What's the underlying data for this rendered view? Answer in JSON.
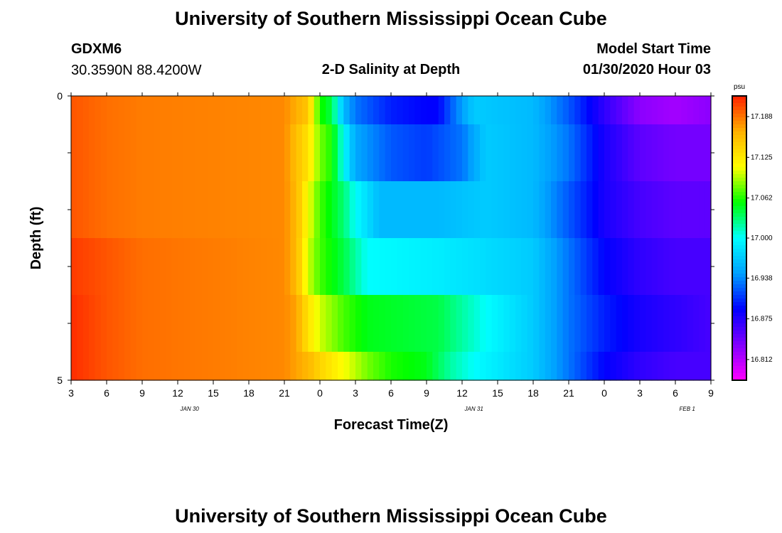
{
  "page": {
    "title": "University of Southern Mississippi Ocean Cube",
    "footer_title": "University of Southern Mississippi Ocean Cube",
    "station": "GDXM6",
    "location": "30.3590N 88.4200W",
    "subtitle": "2-D Salinity at Depth",
    "model_label": "Model Start Time",
    "model_time": "01/30/2020 Hour 03"
  },
  "chart_data": {
    "type": "heatmap",
    "title": "2-D Salinity at Depth",
    "xlabel": "Forecast Time(Z)",
    "ylabel": "Depth (ft)",
    "x_range_hours": [
      3,
      57
    ],
    "x_ticks": [
      "3",
      "6",
      "9",
      "12",
      "15",
      "18",
      "21",
      "0",
      "3",
      "6",
      "9",
      "12",
      "15",
      "18",
      "21",
      "0",
      "3",
      "6",
      "9"
    ],
    "date_labels": [
      {
        "label": "JAN 30",
        "hour": 13
      },
      {
        "label": "JAN 31",
        "hour": 37
      },
      {
        "label": "FEB 1",
        "hour": 55
      }
    ],
    "y_range": [
      0,
      5
    ],
    "y_tick_labels": [
      "0",
      "5"
    ],
    "colorbar": {
      "unit": "psu",
      "min": 16.78,
      "max": 17.22,
      "labels": [
        "17.188",
        "17.125",
        "17.062",
        "17.000",
        "16.938",
        "16.875",
        "16.812"
      ],
      "colors": [
        "#ff00ff",
        "#8000ff",
        "#0000ff",
        "#00a0ff",
        "#00ffff",
        "#00ff00",
        "#ffff00",
        "#ffb000",
        "#ff2000"
      ]
    },
    "depth_layers": [
      {
        "y0": 0.0,
        "y1": 0.5,
        "keyframes": [
          [
            3,
            17.2
          ],
          [
            6,
            17.19
          ],
          [
            9,
            17.185
          ],
          [
            21,
            17.18
          ],
          [
            23,
            17.15
          ],
          [
            24,
            17.06
          ],
          [
            25,
            17.04
          ],
          [
            26,
            16.96
          ],
          [
            27,
            16.93
          ],
          [
            30,
            16.9
          ],
          [
            33,
            16.89
          ],
          [
            34,
            16.89
          ],
          [
            35,
            16.92
          ],
          [
            37,
            16.97
          ],
          [
            42,
            16.96
          ],
          [
            45,
            16.92
          ],
          [
            48,
            16.87
          ],
          [
            51,
            16.83
          ],
          [
            54,
            16.82
          ],
          [
            57,
            16.83
          ]
        ]
      },
      {
        "y0": 0.5,
        "y1": 1.5,
        "keyframes": [
          [
            3,
            17.2
          ],
          [
            6,
            17.19
          ],
          [
            9,
            17.185
          ],
          [
            21,
            17.18
          ],
          [
            23,
            17.13
          ],
          [
            24,
            17.08
          ],
          [
            25,
            17.06
          ],
          [
            26,
            17.0
          ],
          [
            27,
            16.95
          ],
          [
            30,
            16.92
          ],
          [
            33,
            16.91
          ],
          [
            36,
            16.93
          ],
          [
            38,
            16.97
          ],
          [
            42,
            16.96
          ],
          [
            45,
            16.93
          ],
          [
            48,
            16.88
          ],
          [
            51,
            16.85
          ],
          [
            54,
            16.84
          ],
          [
            57,
            16.84
          ]
        ]
      },
      {
        "y0": 1.5,
        "y1": 2.5,
        "keyframes": [
          [
            3,
            17.2
          ],
          [
            6,
            17.19
          ],
          [
            9,
            17.185
          ],
          [
            21,
            17.18
          ],
          [
            22,
            17.16
          ],
          [
            23,
            17.11
          ],
          [
            24,
            17.07
          ],
          [
            26,
            17.03
          ],
          [
            27,
            17.0
          ],
          [
            29,
            16.96
          ],
          [
            34,
            16.96
          ],
          [
            38,
            16.97
          ],
          [
            42,
            16.96
          ],
          [
            45,
            16.92
          ],
          [
            48,
            16.88
          ],
          [
            51,
            16.86
          ],
          [
            54,
            16.85
          ],
          [
            57,
            16.85
          ]
        ]
      },
      {
        "y0": 2.5,
        "y1": 3.5,
        "keyframes": [
          [
            3,
            17.21
          ],
          [
            6,
            17.2
          ],
          [
            9,
            17.19
          ],
          [
            21,
            17.18
          ],
          [
            22,
            17.16
          ],
          [
            23,
            17.1
          ],
          [
            24,
            17.07
          ],
          [
            26,
            17.04
          ],
          [
            28,
            17.0
          ],
          [
            34,
            16.99
          ],
          [
            38,
            16.98
          ],
          [
            42,
            16.97
          ],
          [
            45,
            16.93
          ],
          [
            48,
            16.89
          ],
          [
            51,
            16.87
          ],
          [
            54,
            16.86
          ],
          [
            57,
            16.86
          ]
        ]
      },
      {
        "y0": 3.5,
        "y1": 4.5,
        "keyframes": [
          [
            3,
            17.215
          ],
          [
            6,
            17.2
          ],
          [
            9,
            17.19
          ],
          [
            21,
            17.18
          ],
          [
            22,
            17.17
          ],
          [
            23,
            17.13
          ],
          [
            24,
            17.1
          ],
          [
            26,
            17.07
          ],
          [
            28,
            17.05
          ],
          [
            34,
            17.04
          ],
          [
            36,
            17.02
          ],
          [
            38,
            17.0
          ],
          [
            42,
            16.97
          ],
          [
            45,
            16.93
          ],
          [
            48,
            16.9
          ],
          [
            51,
            16.88
          ],
          [
            54,
            16.87
          ],
          [
            57,
            16.86
          ]
        ]
      },
      {
        "y0": 4.5,
        "y1": 5.0,
        "keyframes": [
          [
            3,
            17.215
          ],
          [
            6,
            17.2
          ],
          [
            9,
            17.19
          ],
          [
            21,
            17.18
          ],
          [
            23,
            17.16
          ],
          [
            24,
            17.14
          ],
          [
            26,
            17.11
          ],
          [
            28,
            17.08
          ],
          [
            30,
            17.06
          ],
          [
            33,
            17.05
          ],
          [
            35,
            17.02
          ],
          [
            37,
            17.0
          ],
          [
            42,
            16.97
          ],
          [
            45,
            16.93
          ],
          [
            48,
            16.89
          ],
          [
            51,
            16.87
          ],
          [
            54,
            16.86
          ],
          [
            57,
            16.86
          ]
        ]
      }
    ]
  }
}
